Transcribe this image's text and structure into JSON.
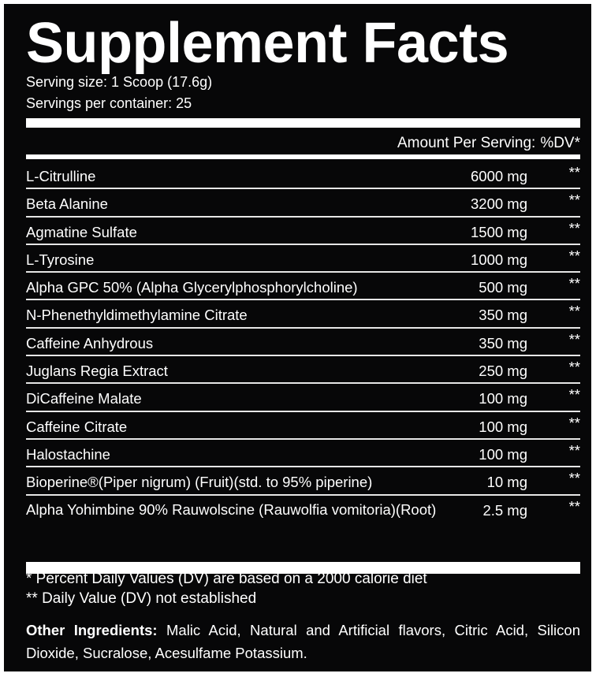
{
  "title": "Supplement Facts",
  "serving_size": "Serving size: 1 Scoop (17.6g)",
  "servings_per_container": "Servings per container:  25",
  "header": {
    "amount_label": "Amount Per Serving:",
    "dv_label": "%DV*"
  },
  "ingredients": [
    {
      "name": "L-Citrulline",
      "amount": "6000 mg",
      "dv": "**"
    },
    {
      "name": "Beta Alanine",
      "amount": "3200 mg",
      "dv": "**"
    },
    {
      "name": "Agmatine Sulfate",
      "amount": "1500 mg",
      "dv": "**"
    },
    {
      "name": "L-Tyrosine",
      "amount": "1000 mg",
      "dv": "**"
    },
    {
      "name": "Alpha GPC 50% (Alpha Glycerylphosphorylcholine)",
      "amount": "500 mg",
      "dv": "**"
    },
    {
      "name": "N-Phenethyldimethylamine Citrate",
      "amount": "350 mg",
      "dv": "**"
    },
    {
      "name": "Caffeine Anhydrous",
      "amount": "350 mg",
      "dv": "**"
    },
    {
      "name": "Juglans Regia Extract",
      "amount": "250 mg",
      "dv": "**"
    },
    {
      "name": "DiCaffeine Malate",
      "amount": "100 mg",
      "dv": "**"
    },
    {
      "name": "Caffeine Citrate",
      "amount": "100 mg",
      "dv": "**"
    },
    {
      "name": "Halostachine",
      "amount": "100 mg",
      "dv": "**"
    },
    {
      "name": "Bioperine®(Piper nigrum) (Fruit)(std. to 95% piperine)",
      "amount": "10 mg",
      "dv": "**"
    },
    {
      "name": "Alpha Yohimbine 90% Rauwolscine (Rauwolfia vomitoria)(Root)",
      "amount": "2.5 mg",
      "dv": "**"
    }
  ],
  "footnotes": {
    "dv_basis": "* Percent Daily Values (DV) are based on a 2000 calorie diet",
    "dv_not_established": "** Daily Value (DV) not established"
  },
  "other_ingredients": {
    "label": "Other Ingredients:",
    "text": "Malic Acid, Natural and Artificial flavors, Citric Acid, Silicon Dioxide, Sucralose, Acesulfame Potassium."
  },
  "colors": {
    "background": "#070708",
    "text": "#ffffff"
  }
}
